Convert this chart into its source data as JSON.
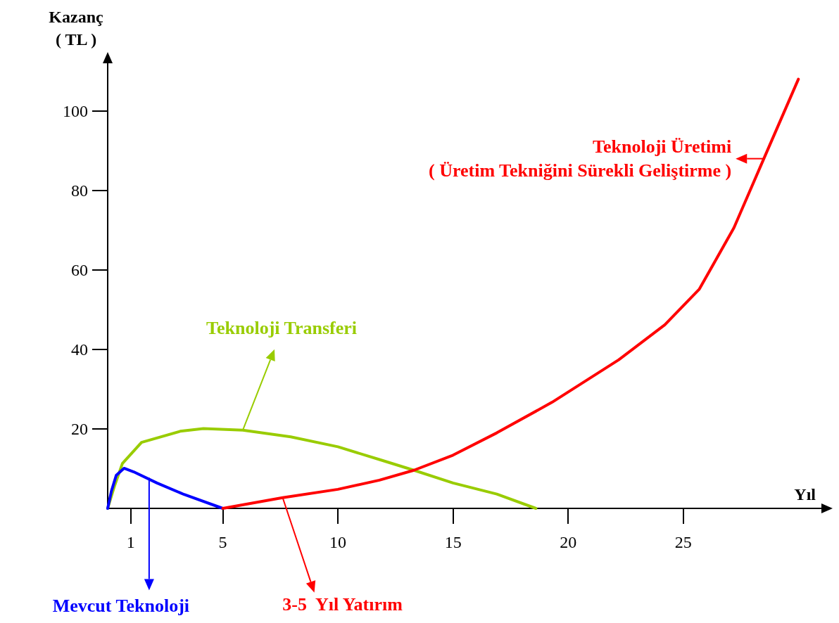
{
  "chart_data": {
    "type": "line",
    "xlabel": "Yıl",
    "ylabel": "Kazanç\n( TL )",
    "xlim": [
      0,
      31
    ],
    "ylim": [
      0,
      112
    ],
    "xticks": [
      1,
      5,
      10,
      15,
      20,
      25
    ],
    "yticks": [
      20,
      40,
      60,
      80,
      100
    ],
    "grid": false,
    "marker": "none",
    "line_style": "solid",
    "series": [
      {
        "color": "#99cc00",
        "x": [
          0,
          0.3,
          0.64,
          1.47,
          3.15,
          4.16,
          5.87,
          7.95,
          10,
          11.8,
          13.3,
          15,
          16.9,
          18.6
        ],
        "values": [
          0,
          5.7,
          11.3,
          16.6,
          19.4,
          20.1,
          19.7,
          18.0,
          15.5,
          12.3,
          9.6,
          6.4,
          3.6,
          0
        ]
      },
      {
        "color": "#0000ff",
        "x": [
          0,
          0.16,
          0.37,
          0.71,
          1.13,
          2.14,
          3.32,
          5
        ],
        "values": [
          0,
          4.3,
          8.3,
          10.1,
          9.2,
          6.4,
          3.5,
          0
        ]
      },
      {
        "color": "#ff0000",
        "x": [
          5,
          7.6,
          10,
          11.8,
          13.3,
          15,
          16.9,
          19.3,
          22.2,
          24.2,
          25.7,
          27.2,
          28.5,
          30
        ],
        "values": [
          0,
          2.7,
          4.8,
          7.1,
          9.6,
          13.4,
          19.0,
          26.7,
          37.4,
          46.2,
          55.2,
          70.6,
          88,
          108
        ]
      }
    ],
    "annotations": [
      {
        "text": "Teknoloji Üretimi\n( Üretim Tekniğini Sürekli Geliştirme )",
        "x": 28.5,
        "y": 88
      },
      {
        "text": "Teknoloji Transferi",
        "x": 5.87,
        "y": 19.7
      },
      {
        "text": "Mevcut Teknoloji",
        "x": 1.8,
        "y": 7.7
      },
      {
        "text": "3-5  Yıl Yatırım",
        "x": 7.6,
        "y": 2.7
      }
    ]
  }
}
